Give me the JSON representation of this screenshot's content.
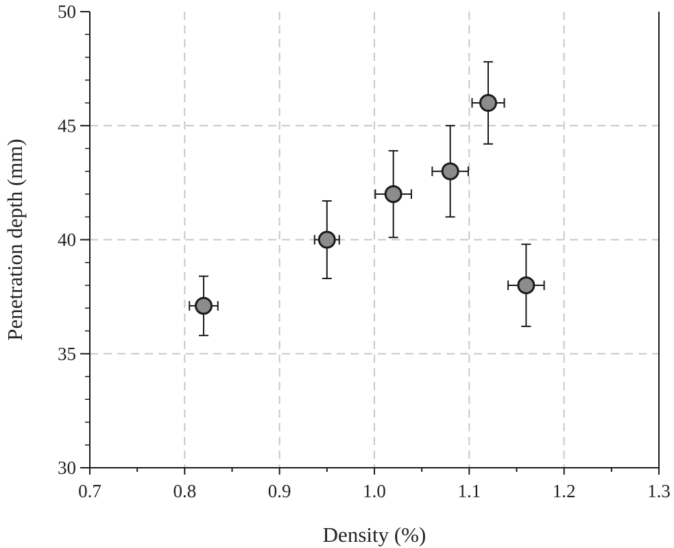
{
  "chart_data": {
    "type": "scatter",
    "xlabel": "Density (%)",
    "ylabel": "Penetration depth (mm)",
    "xlim": [
      0.7,
      1.3
    ],
    "ylim": [
      30,
      50
    ],
    "x_ticks": [
      "0.7",
      "0.8",
      "0.9",
      "1.0",
      "1.1",
      "1.2",
      "1.3"
    ],
    "y_ticks": [
      "30",
      "35",
      "40",
      "45",
      "50"
    ],
    "grid": true,
    "points": [
      {
        "x": 0.82,
        "y": 37.1,
        "x_err": 0.015,
        "y_err_low": 1.3,
        "y_err_high": 1.3
      },
      {
        "x": 0.95,
        "y": 40.0,
        "x_err": 0.013,
        "y_err_low": 1.7,
        "y_err_high": 1.7
      },
      {
        "x": 1.02,
        "y": 42.0,
        "x_err": 0.019,
        "y_err_low": 1.9,
        "y_err_high": 1.9
      },
      {
        "x": 1.08,
        "y": 43.0,
        "x_err": 0.019,
        "y_err_low": 2.0,
        "y_err_high": 2.0
      },
      {
        "x": 1.12,
        "y": 46.0,
        "x_err": 0.017,
        "y_err_low": 1.8,
        "y_err_high": 1.8
      },
      {
        "x": 1.16,
        "y": 38.0,
        "x_err": 0.019,
        "y_err_low": 1.8,
        "y_err_high": 1.8
      }
    ],
    "colors": {
      "marker_fill": "#8c8c8c",
      "marker_edge": "#1a1a1a",
      "grid": "#c8c8c8",
      "axis": "#1a1a1a"
    }
  }
}
